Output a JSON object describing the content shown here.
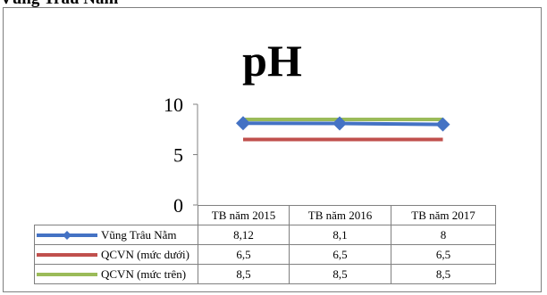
{
  "header": {
    "fragment": "Vùng Trâu Nằm"
  },
  "colors": {
    "series_1": "#4472c4",
    "series_2": "#c0504d",
    "series_3": "#9bbb59",
    "axis": "#808080"
  },
  "chart_data": {
    "type": "line",
    "title": "pH",
    "categories": [
      "TB năm 2015",
      "TB năm 2016",
      "TB năm 2017"
    ],
    "series": [
      {
        "name": "Vũng Trâu Nằm",
        "values": [
          8.12,
          8.1,
          8.0
        ],
        "labels": [
          "8,12",
          "8,1",
          "8"
        ],
        "marker": "diamond"
      },
      {
        "name": "QCVN (mức dưới)",
        "values": [
          6.5,
          6.5,
          6.5
        ],
        "labels": [
          "6,5",
          "6,5",
          "6,5"
        ],
        "marker": "none"
      },
      {
        "name": "QCVN (mức trên)",
        "values": [
          8.5,
          8.5,
          8.5
        ],
        "labels": [
          "8,5",
          "8,5",
          "8,5"
        ],
        "marker": "none"
      }
    ],
    "y_ticks": [
      "0",
      "5",
      "10"
    ],
    "ylim": [
      0,
      10
    ],
    "grid": false,
    "legend": "data-table"
  }
}
